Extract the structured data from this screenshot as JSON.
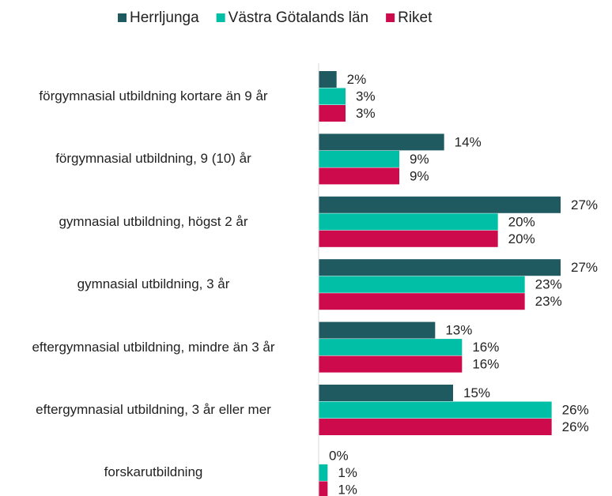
{
  "chart_data": {
    "type": "barh",
    "categories": [
      "förgymnasial utbildning kortare än 9 år",
      "förgymnasial utbildning, 9 (10) år",
      "gymnasial utbildning, högst 2 år",
      "gymnasial utbildning, 3 år",
      "eftergymnasial utbildning, mindre än 3 år",
      "eftergymnasial utbildning, 3 år eller mer",
      "forskarutbildning"
    ],
    "series": [
      {
        "name": "Herrljunga",
        "color": "#1f5a61",
        "values": [
          2,
          14,
          27,
          27,
          13,
          15,
          0
        ],
        "value_labels": [
          "2%",
          "14%",
          "27%",
          "27%",
          "13%",
          "15%",
          "0%"
        ]
      },
      {
        "name": "Västra Götalands län",
        "color": "#00bfa6",
        "values": [
          3,
          9,
          20,
          23,
          16,
          26,
          1
        ],
        "value_labels": [
          "3%",
          "9%",
          "20%",
          "23%",
          "16%",
          "26%",
          "1%"
        ]
      },
      {
        "name": "Riket",
        "color": "#cc0a4c",
        "values": [
          3,
          9,
          20,
          23,
          16,
          26,
          1
        ],
        "value_labels": [
          "3%",
          "9%",
          "20%",
          "23%",
          "16%",
          "26%",
          "1%"
        ]
      }
    ],
    "xlim": [
      0,
      30
    ]
  }
}
